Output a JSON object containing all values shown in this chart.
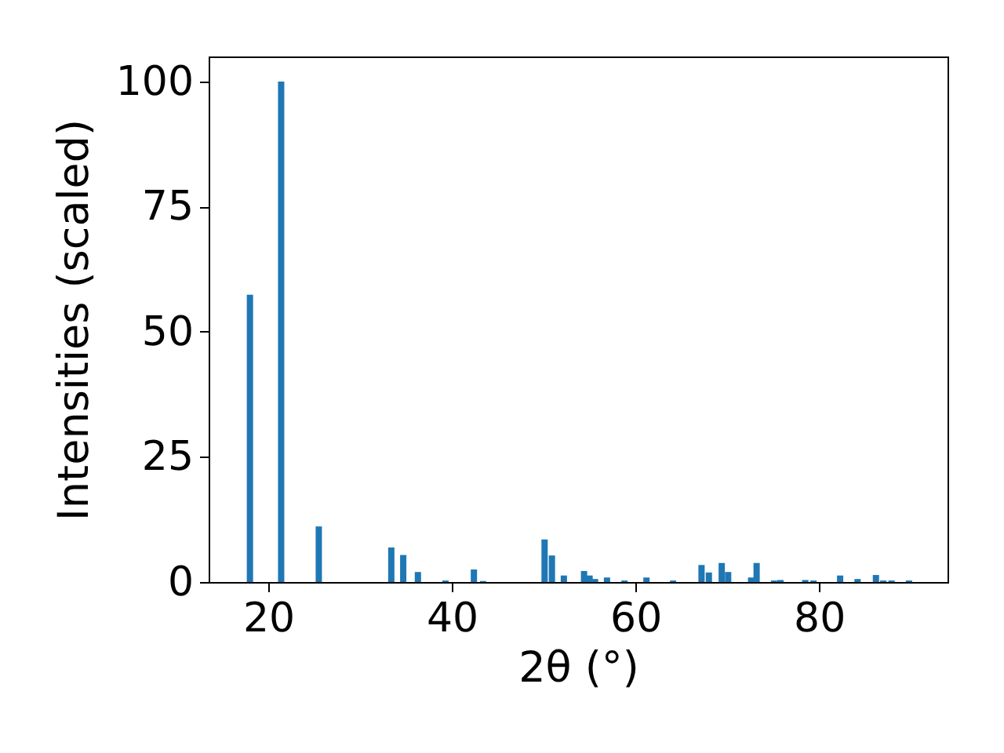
{
  "chart_data": {
    "type": "bar",
    "xlabel": "2θ (°)",
    "ylabel": "Intensities (scaled)",
    "x": [
      18.0,
      21.4,
      25.5,
      33.4,
      34.7,
      36.3,
      39.3,
      42.4,
      43.4,
      50.1,
      50.9,
      52.2,
      54.4,
      55.0,
      55.6,
      56.9,
      58.8,
      61.2,
      64.1,
      67.2,
      68.0,
      69.4,
      70.1,
      72.6,
      73.2,
      75.1,
      75.8,
      78.5,
      79.4,
      82.3,
      84.2,
      86.2,
      87.0,
      87.9,
      89.8
    ],
    "series": [
      {
        "color": "#1f77b4",
        "values": [
          57.4,
          100,
          11.1,
          6.9,
          5.4,
          2.0,
          0.3,
          2.5,
          0.2,
          8.5,
          5.3,
          1.3,
          2.2,
          1.3,
          0.6,
          0.9,
          0.3,
          0.9,
          0.3,
          3.4,
          1.9,
          3.8,
          2.0,
          0.9,
          3.8,
          0.3,
          0.4,
          0.4,
          0.3,
          1.3,
          0.6,
          1.4,
          0.3,
          0.3,
          0.3
        ]
      }
    ],
    "xlim": [
      13.5,
      94
    ],
    "xticks": [
      20,
      40,
      60,
      80
    ],
    "ylim": [
      0,
      105
    ],
    "yticks": [
      0,
      25,
      50,
      75,
      100
    ]
  }
}
